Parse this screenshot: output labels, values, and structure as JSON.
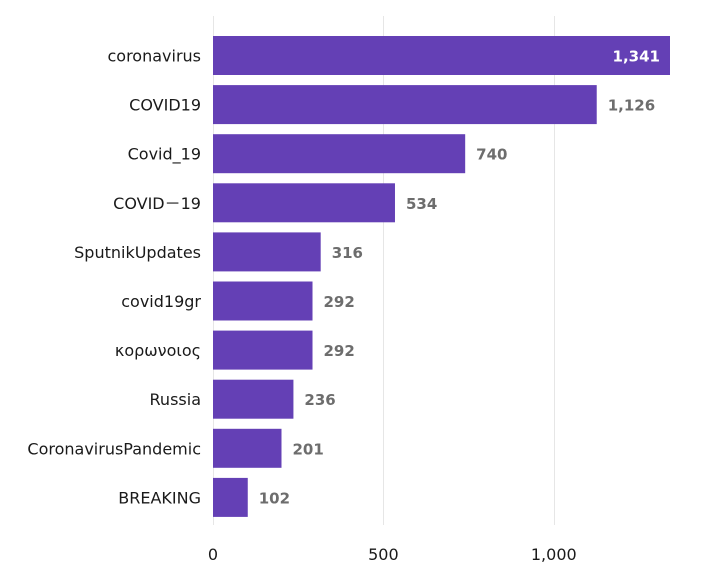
{
  "chart_data": {
    "type": "bar",
    "orientation": "horizontal",
    "categories": [
      "coronavirus",
      "COVID19",
      "Covid_19",
      "COVID－19",
      "SputnikUpdates",
      "covid19gr",
      "κορωνοιος",
      "Russia",
      "CoronavirusPandemic",
      "BREAKING"
    ],
    "values": [
      1341,
      1126,
      740,
      534,
      316,
      292,
      292,
      236,
      201,
      102
    ],
    "value_labels": [
      "1,341",
      "1,126",
      "740",
      "534",
      "316",
      "292",
      "292",
      "236",
      "201",
      "102"
    ],
    "title": "",
    "xlabel": "",
    "ylabel": "",
    "xlim": [
      0,
      1341
    ],
    "xticks": [
      0,
      500,
      1000
    ],
    "xtick_labels": [
      "0",
      "500",
      "1,000"
    ],
    "grid": "vertical",
    "legend": "none",
    "colors": {
      "bar": "#6440b5",
      "value_label_outside": "#6d6d6d",
      "value_label_inside": "#ffffff"
    }
  }
}
